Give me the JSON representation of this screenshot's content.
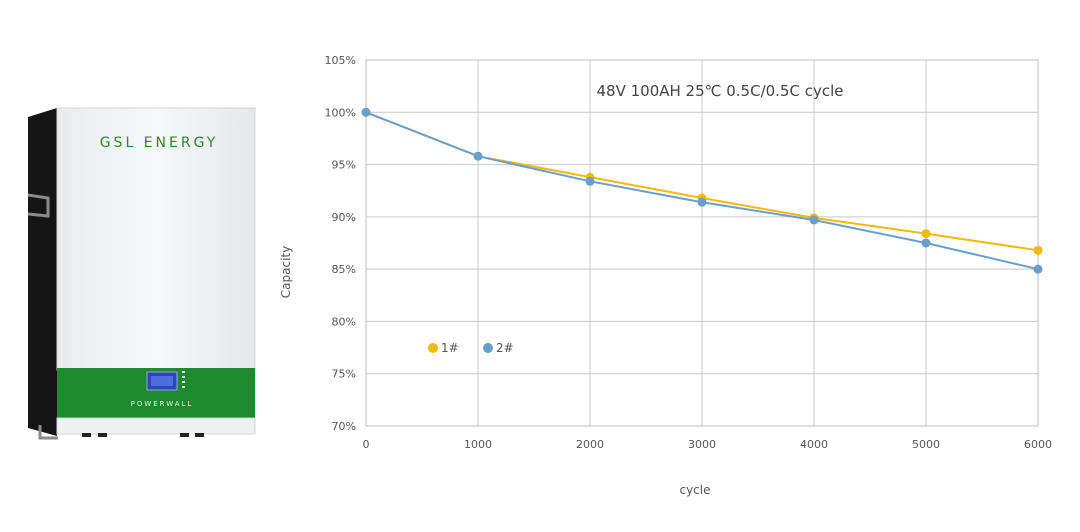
{
  "product": {
    "brand_label": "GSL ENERGY",
    "model_label": "POWERWALL"
  },
  "chart_data": {
    "type": "line",
    "title": "48V 100AH 25℃ 0.5C/0.5C cycle",
    "xlabel": "cycle",
    "ylabel": "Capacity",
    "x": [
      0,
      1000,
      2000,
      3000,
      4000,
      5000,
      6000
    ],
    "xlim": [
      0,
      6000
    ],
    "ylim": [
      70,
      105
    ],
    "x_ticks": [
      "0",
      "1000",
      "2000",
      "3000",
      "4000",
      "5000",
      "6000"
    ],
    "y_ticks": [
      "70%",
      "75%",
      "80%",
      "85%",
      "90%",
      "95%",
      "100%",
      "105%"
    ],
    "grid": true,
    "legend_position": "lower-left",
    "series": [
      {
        "name": "1#",
        "color": "#f2b90f",
        "values": [
          100,
          95.8,
          93.8,
          91.8,
          89.9,
          88.4,
          86.8
        ]
      },
      {
        "name": "2#",
        "color": "#6b9fcb",
        "values": [
          100,
          95.8,
          93.4,
          91.4,
          89.7,
          87.5,
          85.0
        ]
      }
    ]
  }
}
